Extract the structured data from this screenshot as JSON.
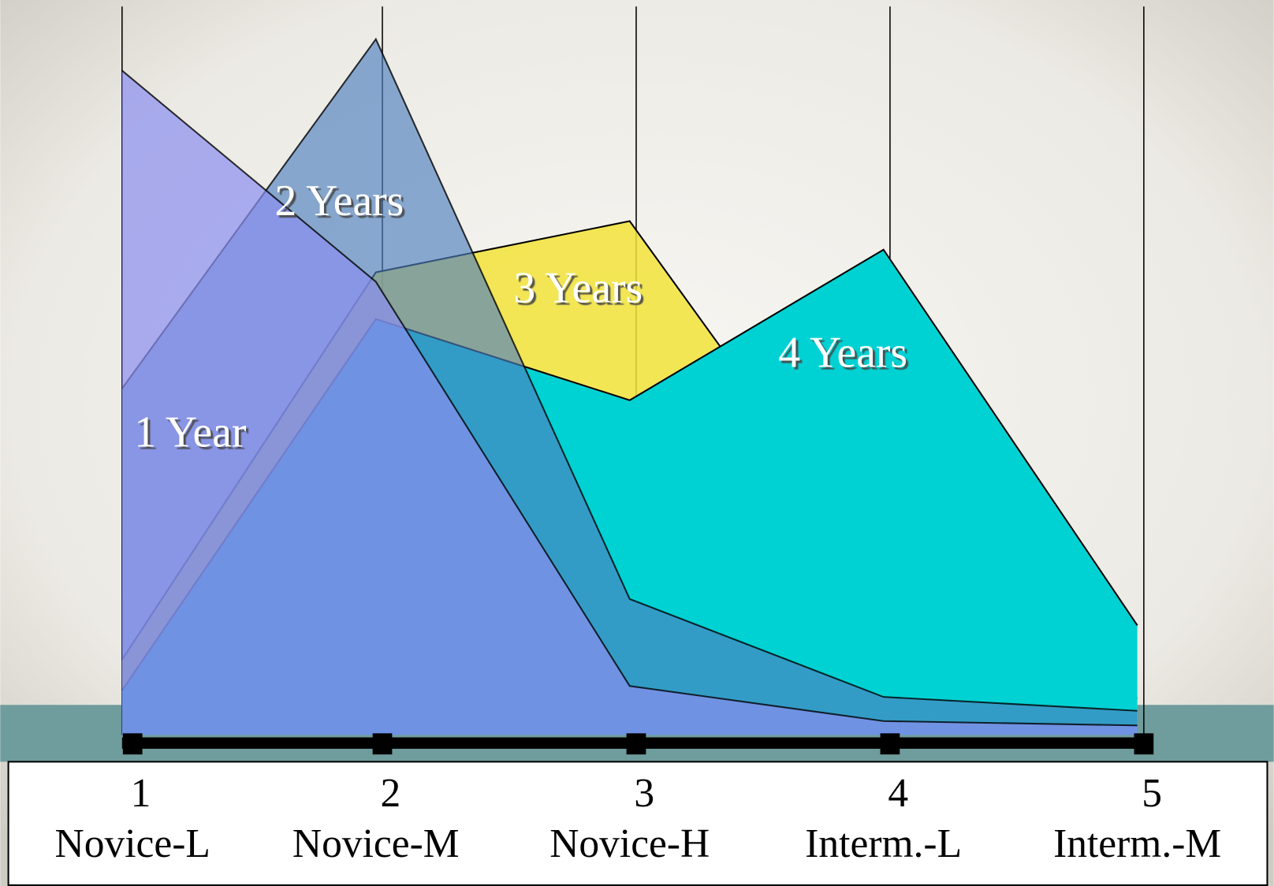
{
  "chart_data": {
    "type": "area",
    "categories": [
      "1",
      "2",
      "3",
      "4",
      "5"
    ],
    "category_sublabels": [
      "Novice-L",
      "Novice-M",
      "Novice-H",
      "Interm.-L",
      "Interm.-M"
    ],
    "ylim": [
      0,
      100
    ],
    "grid": true,
    "series": [
      {
        "name": "1 Year",
        "color": "#8a8ef0",
        "values": [
          90.9,
          62,
          6.7,
          1.9,
          1.3
        ]
      },
      {
        "name": "2 Years",
        "color": "#4f7fbf",
        "values": [
          47.4,
          95.2,
          18.6,
          5.2,
          3.3
        ]
      },
      {
        "name": "3 Years",
        "color": "#f2e33a",
        "values": [
          10.3,
          63.3,
          70.3,
          22.2,
          5
        ]
      },
      {
        "name": "4 Years",
        "color": "#00d2d4",
        "values": [
          6.1,
          56.9,
          45.8,
          66.4,
          15
        ]
      }
    ]
  }
}
